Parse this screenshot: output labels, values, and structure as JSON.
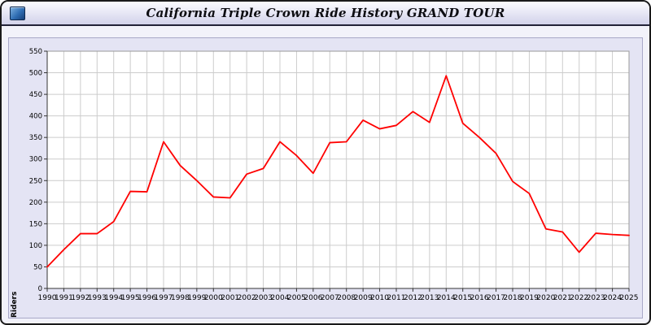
{
  "window": {
    "title": "California Triple Crown Ride History GRAND TOUR"
  },
  "chart_data": {
    "type": "line",
    "title": "California Triple Crown Ride History GRAND TOUR",
    "xlabel": "",
    "ylabel": "Riders",
    "ylim": [
      0,
      550
    ],
    "ytick_step": 50,
    "grid": true,
    "legend": "none",
    "line_color": "#ff0000",
    "years": [
      1990,
      1991,
      1992,
      1993,
      1994,
      1995,
      1996,
      1997,
      1998,
      1999,
      2000,
      2001,
      2002,
      2003,
      2004,
      2005,
      2006,
      2007,
      2008,
      2009,
      2010,
      2011,
      2012,
      2013,
      2014,
      2015,
      2016,
      2017,
      2018,
      2019,
      2020,
      2021,
      2022,
      2023,
      2024,
      2025
    ],
    "values": [
      50,
      90,
      127,
      127,
      155,
      225,
      224,
      340,
      285,
      250,
      212,
      210,
      265,
      278,
      340,
      308,
      267,
      338,
      340,
      390,
      370,
      378,
      410,
      385,
      493,
      383,
      350,
      313,
      248,
      220,
      138,
      131,
      84,
      128,
      125,
      123
    ]
  },
  "colors": {
    "line": "#ff0000",
    "grid": "#cccccc",
    "plot_background": "#ffffff",
    "panel_background": "#e4e4f4",
    "axis": "#333333"
  }
}
